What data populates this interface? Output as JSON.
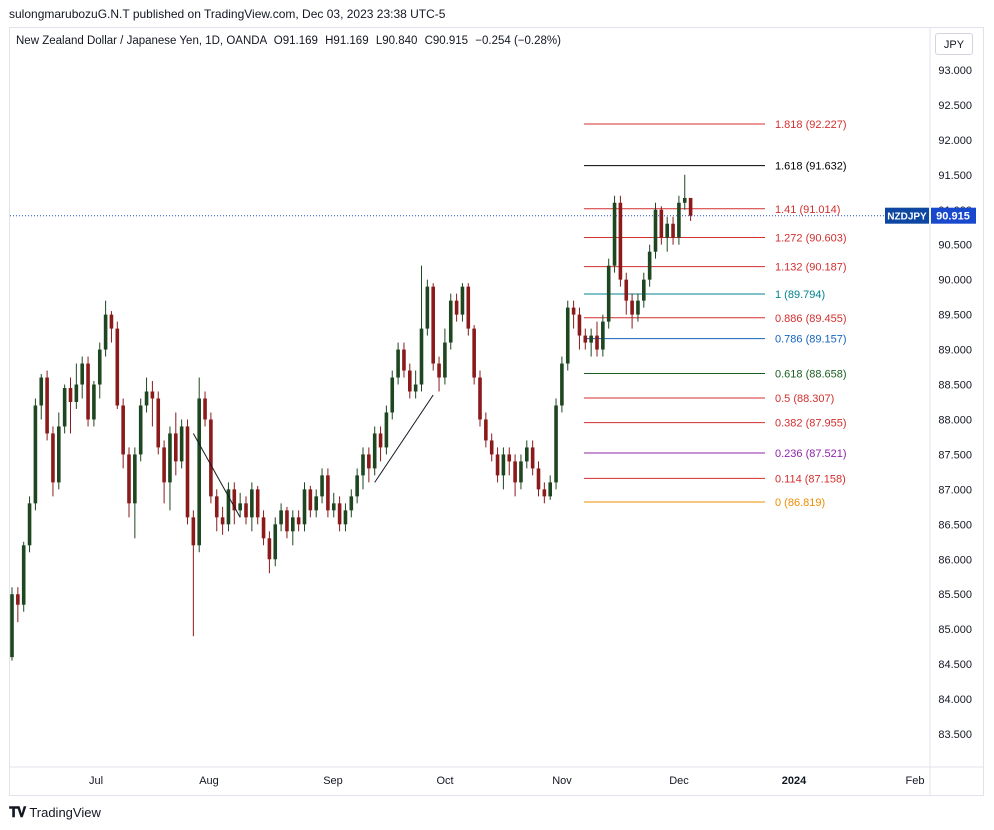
{
  "header": {
    "publisher_line": "sulongmarubozuG.N.T published on TradingView.com, Dec 03, 2023 23:38 UTC-5"
  },
  "legend": {
    "title": "New Zealand Dollar / Japanese Yen, 1D, OANDA",
    "open": "O91.169",
    "high": "H91.169",
    "low": "L90.840",
    "close": "C90.915",
    "change": "−0.254 (−0.28%)"
  },
  "currency_button": "JPY",
  "footer": {
    "brand": "TradingView"
  },
  "colors": {
    "up": "#1e4620",
    "down": "#8b1a1a",
    "symbol_tag": "#0d47a1",
    "price_tag": "#1848cc"
  },
  "chart_data": {
    "type": "candlestick",
    "symbol": "NZDJPY",
    "y_axis": {
      "range": [
        83.1,
        93.6
      ],
      "ticks": [
        "93.000",
        "92.500",
        "92.000",
        "91.500",
        "91.000",
        "90.500",
        "90.000",
        "89.500",
        "89.000",
        "88.500",
        "88.000",
        "87.500",
        "87.000",
        "86.500",
        "86.000",
        "85.500",
        "85.000",
        "84.500",
        "84.000",
        "83.500"
      ]
    },
    "x_axis": {
      "labels": [
        "Jul",
        "Aug",
        "Sep",
        "Oct",
        "Nov",
        "Dec",
        "2024",
        "Feb"
      ]
    },
    "last_price": {
      "symbol_label": "NZDJPY",
      "value": "90.915",
      "price": 90.915
    },
    "fibonacci": [
      {
        "label": "1.818 (92.227)",
        "price": 92.227,
        "color": "#d32f2f"
      },
      {
        "label": "1.618 (91.632)",
        "price": 91.632,
        "color": "#000000"
      },
      {
        "label": "1.41 (91.014)",
        "price": 91.014,
        "color": "#d32f2f"
      },
      {
        "label": "1.272 (90.603)",
        "price": 90.603,
        "color": "#d32f2f"
      },
      {
        "label": "1.132 (90.187)",
        "price": 90.187,
        "color": "#d32f2f"
      },
      {
        "label": "1 (89.794)",
        "price": 89.794,
        "color": "#00838f"
      },
      {
        "label": "0.886 (89.455)",
        "price": 89.455,
        "color": "#d32f2f"
      },
      {
        "label": "0.786 (89.157)",
        "price": 89.157,
        "color": "#1565c0"
      },
      {
        "label": "0.618 (88.658)",
        "price": 88.658,
        "color": "#1b5e20"
      },
      {
        "label": "0.5 (88.307)",
        "price": 88.307,
        "color": "#d32f2f"
      },
      {
        "label": "0.382 (87.955)",
        "price": 87.955,
        "color": "#d32f2f"
      },
      {
        "label": "0.236 (87.521)",
        "price": 87.521,
        "color": "#8e24aa"
      },
      {
        "label": "0.114 (87.158)",
        "price": 87.158,
        "color": "#d32f2f"
      },
      {
        "label": "0 (86.819)",
        "price": 86.819,
        "color": "#ef8c00"
      }
    ],
    "candles": [
      [
        84.6,
        85.5,
        84.55,
        85.6
      ],
      [
        85.5,
        85.35,
        85.1,
        85.6
      ],
      [
        85.35,
        86.2,
        85.25,
        86.25
      ],
      [
        86.2,
        86.8,
        86.1,
        86.9
      ],
      [
        86.8,
        88.2,
        86.7,
        88.3
      ],
      [
        88.2,
        88.6,
        88.0,
        88.65
      ],
      [
        88.6,
        87.8,
        87.7,
        88.7
      ],
      [
        87.8,
        87.1,
        86.9,
        87.9
      ],
      [
        87.1,
        87.9,
        87.0,
        88.1
      ],
      [
        87.9,
        88.45,
        87.8,
        88.5
      ],
      [
        88.45,
        88.25,
        87.8,
        88.6
      ],
      [
        88.25,
        88.5,
        88.15,
        88.8
      ],
      [
        88.5,
        88.8,
        88.3,
        88.9
      ],
      [
        88.8,
        88.0,
        87.9,
        88.9
      ],
      [
        88.0,
        88.5,
        87.9,
        88.55
      ],
      [
        88.5,
        89.0,
        88.3,
        89.1
      ],
      [
        89.0,
        89.5,
        88.9,
        89.7
      ],
      [
        89.5,
        89.3,
        89.1,
        89.55
      ],
      [
        89.3,
        88.2,
        88.15,
        89.4
      ],
      [
        88.2,
        87.5,
        87.3,
        88.3
      ],
      [
        87.5,
        86.8,
        86.6,
        87.6
      ],
      [
        86.8,
        87.5,
        86.3,
        87.6
      ],
      [
        87.5,
        88.2,
        87.4,
        88.3
      ],
      [
        88.2,
        88.4,
        88.1,
        88.6
      ],
      [
        88.4,
        88.3,
        87.9,
        88.55
      ],
      [
        88.3,
        87.6,
        87.5,
        88.4
      ],
      [
        87.6,
        87.1,
        86.8,
        87.7
      ],
      [
        87.1,
        87.8,
        86.7,
        87.9
      ],
      [
        87.8,
        87.4,
        87.2,
        88.1
      ],
      [
        87.4,
        87.9,
        87.3,
        88.0
      ],
      [
        87.9,
        86.6,
        86.5,
        88.0
      ],
      [
        86.6,
        86.2,
        84.9,
        86.7
      ],
      [
        86.2,
        88.3,
        86.1,
        88.6
      ],
      [
        88.3,
        88.0,
        87.9,
        88.4
      ],
      [
        88.0,
        86.9,
        86.8,
        88.1
      ],
      [
        86.9,
        86.6,
        86.4,
        87.0
      ],
      [
        86.6,
        86.5,
        86.35,
        86.75
      ],
      [
        86.5,
        87.0,
        86.4,
        87.1
      ],
      [
        87.0,
        86.7,
        86.5,
        87.1
      ],
      [
        86.7,
        86.8,
        86.6,
        86.95
      ],
      [
        86.8,
        86.6,
        86.5,
        86.9
      ],
      [
        86.6,
        87.0,
        86.4,
        87.1
      ],
      [
        87.0,
        86.6,
        86.5,
        87.05
      ],
      [
        86.6,
        86.3,
        86.2,
        86.7
      ],
      [
        86.3,
        86.0,
        85.8,
        86.4
      ],
      [
        86.0,
        86.5,
        85.9,
        86.6
      ],
      [
        86.5,
        86.7,
        86.4,
        86.8
      ],
      [
        86.7,
        86.4,
        86.3,
        86.75
      ],
      [
        86.4,
        86.6,
        86.2,
        86.7
      ],
      [
        86.6,
        86.5,
        86.4,
        86.7
      ],
      [
        86.5,
        87.0,
        86.4,
        87.1
      ],
      [
        87.0,
        86.7,
        86.6,
        87.05
      ],
      [
        86.7,
        86.9,
        86.6,
        87.0
      ],
      [
        86.9,
        87.2,
        86.8,
        87.3
      ],
      [
        87.2,
        86.7,
        86.6,
        87.3
      ],
      [
        86.7,
        86.8,
        86.6,
        86.95
      ],
      [
        86.8,
        86.5,
        86.4,
        86.9
      ],
      [
        86.5,
        86.7,
        86.4,
        86.8
      ],
      [
        86.7,
        86.9,
        86.6,
        87.0
      ],
      [
        86.9,
        87.2,
        86.8,
        87.3
      ],
      [
        87.2,
        87.5,
        87.0,
        87.6
      ],
      [
        87.5,
        87.3,
        87.1,
        87.6
      ],
      [
        87.3,
        87.8,
        87.2,
        87.9
      ],
      [
        87.8,
        87.6,
        87.4,
        87.9
      ],
      [
        87.6,
        88.1,
        87.5,
        88.2
      ],
      [
        88.1,
        88.6,
        88.0,
        88.7
      ],
      [
        88.6,
        89.0,
        88.5,
        89.1
      ],
      [
        89.0,
        88.7,
        88.6,
        89.1
      ],
      [
        88.7,
        88.4,
        88.3,
        88.8
      ],
      [
        88.4,
        88.5,
        88.3,
        88.7
      ],
      [
        88.5,
        89.3,
        88.4,
        90.2
      ],
      [
        89.3,
        89.9,
        89.2,
        90.0
      ],
      [
        89.9,
        88.8,
        88.7,
        89.95
      ],
      [
        88.8,
        88.6,
        88.4,
        88.9
      ],
      [
        88.6,
        89.1,
        88.5,
        89.3
      ],
      [
        89.1,
        89.7,
        89.0,
        89.8
      ],
      [
        89.7,
        89.5,
        89.4,
        89.8
      ],
      [
        89.5,
        89.9,
        89.4,
        89.95
      ],
      [
        89.9,
        89.3,
        89.2,
        89.95
      ],
      [
        89.3,
        88.6,
        88.5,
        89.35
      ],
      [
        88.6,
        88.0,
        87.9,
        88.7
      ],
      [
        88.0,
        87.7,
        87.6,
        88.1
      ],
      [
        87.7,
        87.5,
        87.4,
        87.8
      ],
      [
        87.5,
        87.2,
        87.1,
        87.6
      ],
      [
        87.2,
        87.5,
        87.0,
        87.6
      ],
      [
        87.5,
        87.4,
        87.2,
        87.6
      ],
      [
        87.4,
        87.1,
        86.9,
        87.5
      ],
      [
        87.1,
        87.4,
        87.0,
        87.5
      ],
      [
        87.4,
        87.6,
        87.3,
        87.7
      ],
      [
        87.6,
        87.3,
        87.2,
        87.7
      ],
      [
        87.3,
        87.0,
        86.9,
        87.4
      ],
      [
        87.0,
        86.9,
        86.8,
        87.1
      ],
      [
        86.9,
        87.1,
        86.85,
        87.2
      ],
      [
        87.1,
        88.2,
        87.0,
        88.3
      ],
      [
        88.2,
        88.8,
        88.1,
        88.9
      ],
      [
        88.8,
        89.6,
        88.7,
        89.7
      ],
      [
        89.6,
        89.5,
        89.3,
        89.7
      ],
      [
        89.5,
        89.2,
        89.0,
        89.6
      ],
      [
        89.2,
        89.1,
        89.0,
        89.3
      ],
      [
        89.1,
        89.2,
        88.9,
        89.3
      ],
      [
        89.2,
        89.0,
        88.9,
        89.4
      ],
      [
        89.0,
        89.4,
        88.9,
        89.5
      ],
      [
        89.4,
        90.2,
        89.3,
        90.3
      ],
      [
        90.2,
        91.1,
        90.1,
        91.2
      ],
      [
        91.1,
        90.0,
        89.9,
        91.2
      ],
      [
        90.0,
        89.7,
        89.5,
        90.1
      ],
      [
        89.7,
        89.5,
        89.3,
        89.8
      ],
      [
        89.5,
        89.7,
        89.4,
        89.8
      ],
      [
        89.7,
        90.0,
        89.6,
        90.1
      ],
      [
        90.0,
        90.4,
        89.9,
        90.5
      ],
      [
        90.4,
        91.0,
        90.3,
        91.1
      ],
      [
        91.0,
        90.6,
        90.5,
        91.05
      ],
      [
        90.6,
        90.8,
        90.4,
        90.9
      ],
      [
        90.8,
        90.6,
        90.5,
        90.9
      ],
      [
        90.6,
        91.1,
        90.5,
        91.2
      ],
      [
        91.1,
        91.169,
        91.0,
        91.5
      ],
      [
        91.169,
        90.915,
        90.84,
        91.169
      ]
    ],
    "drawings": [
      {
        "type": "trend_line",
        "from": {
          "bar": 31,
          "price": 87.8
        },
        "to": {
          "bar": 39,
          "price": 86.6
        }
      },
      {
        "type": "trend_line",
        "from": {
          "bar": 62,
          "price": 87.1
        },
        "to": {
          "bar": 72,
          "price": 88.35
        }
      }
    ]
  }
}
